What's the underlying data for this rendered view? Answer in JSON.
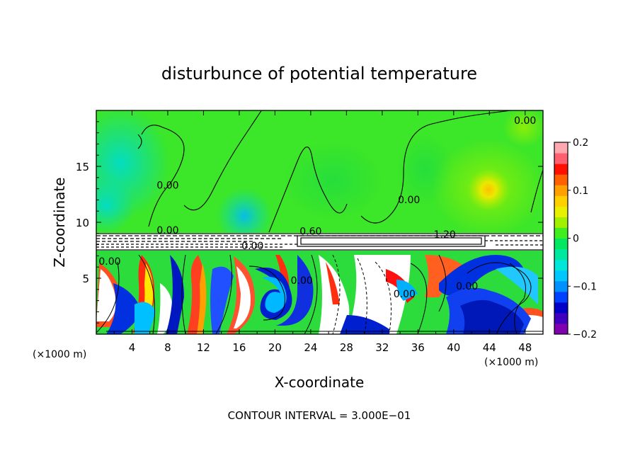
{
  "chart_data": {
    "type": "heatmap",
    "title": "disturbunce of potential temperature",
    "xlabel": "X-coordinate",
    "ylabel": "Z-coordinate",
    "x_unit_label": "(×1000 m)",
    "xlim": [
      0,
      50
    ],
    "ylim": [
      0,
      20
    ],
    "x_ticks": [
      4,
      8,
      12,
      16,
      20,
      24,
      28,
      32,
      36,
      40,
      44,
      48
    ],
    "x_tick_labels": [
      "4",
      "8",
      "12",
      "16",
      "20",
      "24",
      "28",
      "32",
      "36",
      "40",
      "44",
      "48"
    ],
    "y_ticks": [
      5,
      10,
      15
    ],
    "y_tick_labels": [
      "5",
      "10",
      "15"
    ],
    "colorbar": {
      "min": -0.2,
      "max": 0.2,
      "ticks": [
        0.2,
        0.1,
        0,
        -0.1,
        -0.2
      ],
      "tick_labels": [
        "0.2",
        "0.1",
        "0",
        "−0.1",
        "−0.2"
      ],
      "colors": [
        "#8000b0",
        "#4000c0",
        "#0000c8",
        "#0040ff",
        "#0090ff",
        "#00c8ff",
        "#00e6d8",
        "#00e8a0",
        "#00e860",
        "#40ee20",
        "#a0f000",
        "#e8f000",
        "#ffd000",
        "#ffa000",
        "#ff6000",
        "#ff1000",
        "#ff6070",
        "#ffa8b0"
      ]
    },
    "contour_labels": [
      {
        "text": "0.00",
        "x": 8.0,
        "y": 9.0
      },
      {
        "text": "0.60",
        "x": 24.0,
        "y": 8.9
      },
      {
        "text": "1.20",
        "x": 39.0,
        "y": 8.6
      },
      {
        "text": "0.00",
        "x": 17.5,
        "y": 7.6
      },
      {
        "text": "0.00",
        "x": 35.0,
        "y": 11.7
      },
      {
        "text": "0.00",
        "x": 48.0,
        "y": 18.8
      },
      {
        "text": "0.00",
        "x": 8.0,
        "y": 13.0
      },
      {
        "text": "0.00",
        "x": 23.0,
        "y": 4.5
      },
      {
        "text": "0.00",
        "x": 34.5,
        "y": 3.3
      },
      {
        "text": "0.00",
        "x": 41.5,
        "y": 4.0
      },
      {
        "text": "0.00",
        "x": 1.5,
        "y": 6.2
      }
    ],
    "footer": "CONTOUR INTERVAL = 3.000E−01"
  }
}
